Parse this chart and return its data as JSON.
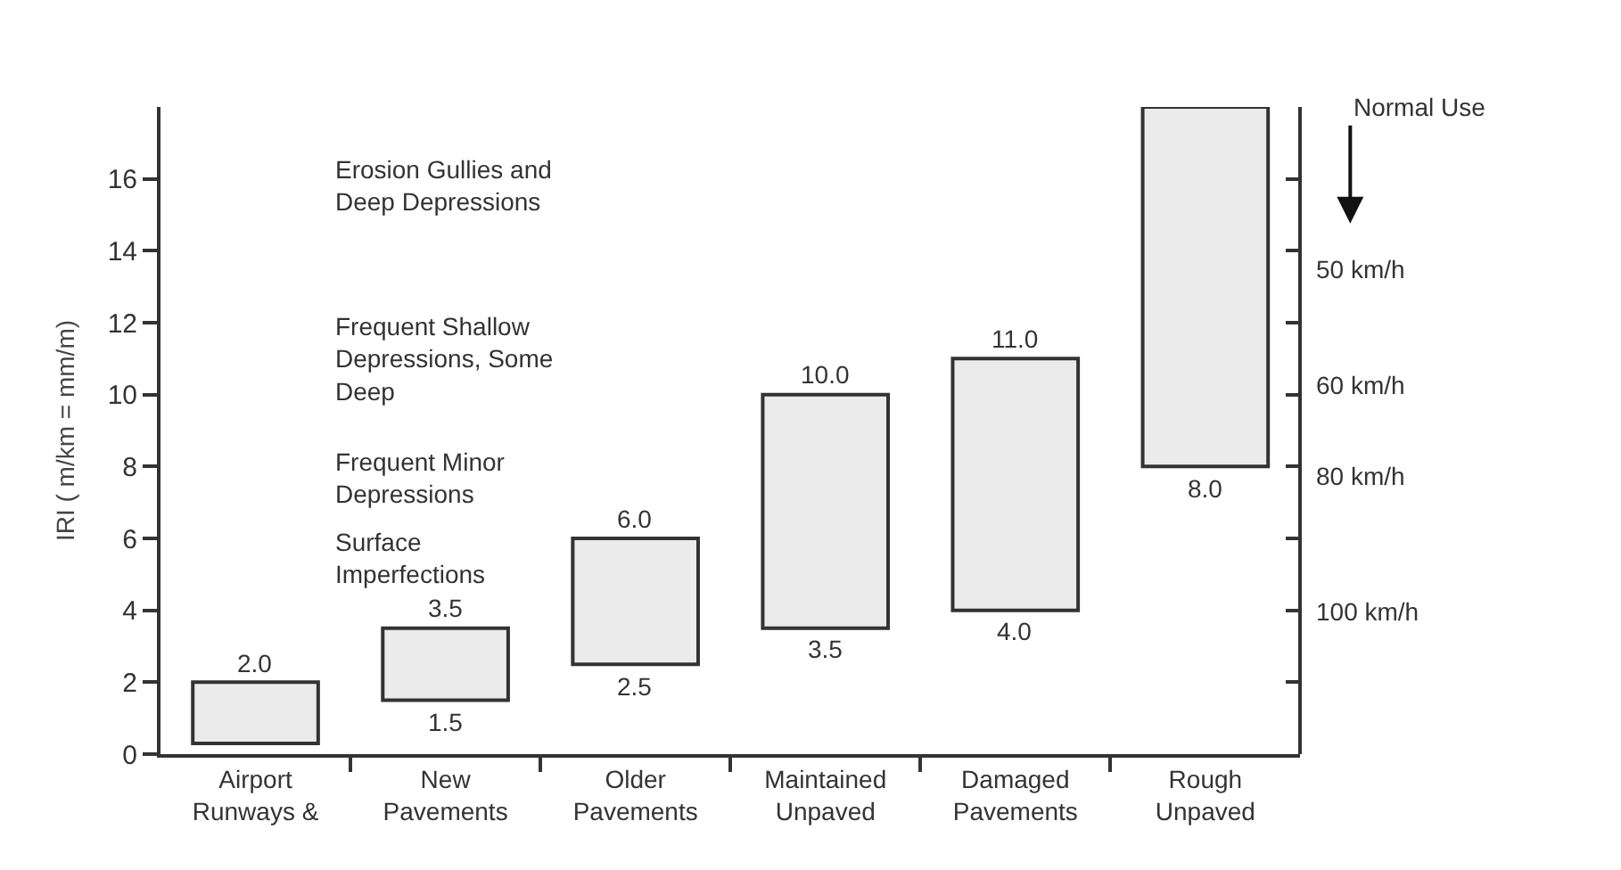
{
  "chart_data": {
    "type": "bar",
    "ylabel": "IRI ( m/km = mm/m)",
    "categories": [
      "Airport\nRunways &",
      "New\nPavements",
      "Older\nPavements",
      "Maintained\nUnpaved",
      "Damaged\nPavements",
      "Rough\nUnpaved"
    ],
    "base": [
      0.3,
      1.5,
      2.5,
      3.5,
      4.0,
      8.0
    ],
    "values": [
      1.7,
      2.0,
      3.5,
      6.5,
      7.0,
      10.0
    ],
    "color": "#ebebeb",
    "ylim": [
      0,
      18
    ],
    "yticks": [
      0,
      2,
      4,
      6,
      8,
      10,
      12,
      14,
      16
    ],
    "legend": false,
    "annotations": [
      {
        "text": "2.0",
        "x": "Airport\nRunways &",
        "y": 2.0
      },
      {
        "text": "3.5",
        "x": "New\nPavements",
        "y": 3.5
      },
      {
        "text": "1.5",
        "x": "New\nPavements",
        "y": 1.5
      },
      {
        "text": "6.0",
        "x": "Older\nPavements",
        "y": 6.0
      },
      {
        "text": "2.5",
        "x": "Older\nPavements",
        "y": 2.5
      },
      {
        "text": "10.0",
        "x": "Maintained\nUnpaved",
        "y": 10.0
      },
      {
        "text": "3.5",
        "x": "Maintained\nUnpaved",
        "y": 3.5
      },
      {
        "text": "11.0",
        "x": "Damaged\nPavements",
        "y": 11.0
      },
      {
        "text": "4.0",
        "x": "Damaged\nPavements",
        "y": 4.0
      },
      {
        "text": "8.0",
        "x": "Rough\nUnpaved",
        "y": 8.0
      },
      "Erosion Gullies and\nDeep Depressions",
      "Frequent Shallow\nDepressions, Some\nDeep",
      "Frequent Minor\nDepressions",
      "Surface\nImperfections",
      "Normal Use",
      "50 km/h",
      "60 km/h",
      "80 km/h",
      "100 km/h"
    ]
  }
}
